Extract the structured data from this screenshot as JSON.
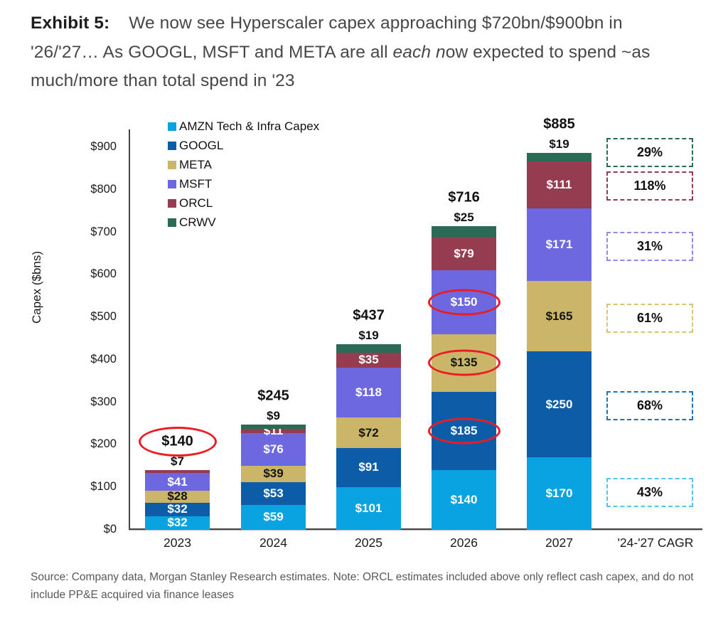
{
  "header": {
    "lines": [
      {
        "parts": [
          {
            "text": "Exhibit 5:",
            "bold": true
          },
          {
            "text": "We now see Hyperscaler capex approaching $720bn/$900bn in"
          }
        ]
      },
      {
        "parts": [
          {
            "text": "'26/'27… As GOOGL, MSFT and META are all "
          },
          {
            "text": "each n",
            "italic": true
          },
          {
            "text": "ow expected to spend ~as"
          }
        ]
      },
      {
        "parts": [
          {
            "text": "much/more than total spend in '23"
          }
        ]
      }
    ]
  },
  "chart_data": {
    "type": "bar",
    "stacked": true,
    "ylabel": "Capex ($bns)",
    "ylim": [
      0,
      900
    ],
    "grid": false,
    "legend_position": "top-left-inside",
    "ytick_values": [
      0,
      100,
      200,
      300,
      400,
      500,
      600,
      700,
      800,
      900
    ],
    "ytick_labels": [
      "$0",
      "$100",
      "$200",
      "$300",
      "$400",
      "$500",
      "$600",
      "$700",
      "$800",
      "$900"
    ],
    "categories": [
      "2023",
      "2024",
      "2025",
      "2026",
      "2027"
    ],
    "cagr_column_label": "'24-'27 CAGR",
    "series": [
      {
        "name": "AMZN Tech & Infra Capex",
        "key": "AMZN",
        "color": "#0aa3e2",
        "label_color": "#ffffff",
        "values": [
          32,
          59,
          101,
          140,
          170
        ]
      },
      {
        "name": "GOOGL",
        "key": "GOOGL",
        "color": "#0d5ca8",
        "label_color": "#ffffff",
        "values": [
          32,
          53,
          91,
          185,
          250
        ]
      },
      {
        "name": "META",
        "key": "META",
        "color": "#cbb569",
        "label_color": "#151515",
        "values": [
          28,
          39,
          72,
          135,
          165
        ]
      },
      {
        "name": "MSFT",
        "key": "MSFT",
        "color": "#6d68df",
        "label_color": "#ffffff",
        "values": [
          41,
          76,
          118,
          150,
          171
        ]
      },
      {
        "name": "ORCL",
        "key": "ORCL",
        "color": "#963c50",
        "label_color": "#ffffff",
        "values": [
          7,
          11,
          35,
          79,
          111
        ]
      },
      {
        "name": "CRWV",
        "key": "CRWV",
        "color": "#2b6a57",
        "label_color": "#ffffff",
        "values": [
          0,
          9,
          19,
          25,
          19
        ]
      }
    ],
    "segment_value_labels": [
      [
        "$32",
        "$32",
        "$28",
        "$41",
        "",
        ""
      ],
      [
        "$59",
        "$53",
        "$39",
        "$76",
        "$11",
        ""
      ],
      [
        "$101",
        "$91",
        "$72",
        "$118",
        "$35",
        ""
      ],
      [
        "$140",
        "$185",
        "$135",
        "$150",
        "$79",
        ""
      ],
      [
        "$170",
        "$250",
        "$165",
        "$171",
        "$111",
        ""
      ]
    ],
    "circled_segments": [
      {
        "category": "2026",
        "series": "GOOGL",
        "label": "$185"
      },
      {
        "category": "2026",
        "series": "META",
        "label": "$135"
      },
      {
        "category": "2026",
        "series": "MSFT",
        "label": "$150"
      }
    ],
    "total_labels": [
      "$140",
      "$245",
      "$437",
      "$716",
      "$885"
    ],
    "total_circled": [
      true,
      false,
      false,
      false,
      false
    ],
    "above_bar_labels": [
      "$7",
      "$9",
      "$19",
      "$25",
      "$19"
    ],
    "annotation_color": "#ec1c24",
    "cagr_boxes": [
      {
        "label": "29%",
        "series": "CRWV",
        "color": "#2b6a57"
      },
      {
        "label": "118%",
        "series": "ORCL",
        "color": "#963c50"
      },
      {
        "label": "31%",
        "series": "MSFT",
        "color": "#8f8be8"
      },
      {
        "label": "61%",
        "series": "META",
        "color": "#d9c478"
      },
      {
        "label": "68%",
        "series": "GOOGL",
        "color": "#1e74b8"
      },
      {
        "label": "43%",
        "series": "AMZN",
        "color": "#55c4f0"
      }
    ]
  },
  "footer": {
    "source_note": "Source: Company data, Morgan Stanley Research estimates. Note: ORCL estimates included above only reflect cash capex, and do not include PP&E acquired via finance leases"
  }
}
